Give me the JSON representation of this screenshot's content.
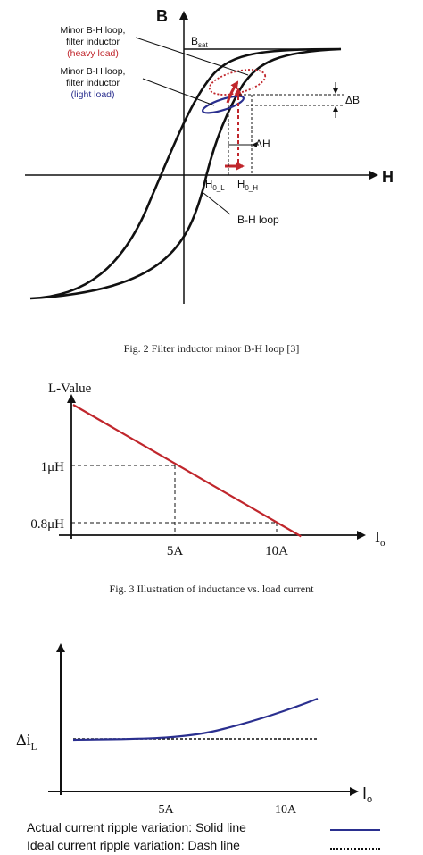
{
  "figure1": {
    "axis_b": "B",
    "axis_h": "H",
    "b_sat": "B",
    "b_sat_sub": "sat",
    "heavy_label_line1": "Minor B-H loop,",
    "heavy_label_line2": "filter inductor",
    "heavy_label_line3": "(heavy load)",
    "light_label_line1": "Minor B-H loop,",
    "light_label_line2": "filter inductor",
    "light_label_line3": "(light load)",
    "delta_b": "ΔB",
    "delta_h": "ΔH",
    "h0l": "H",
    "h0l_sub": "0_L",
    "h0h": "H",
    "h0h_sub": "0_H",
    "bh_loop": "B-H loop",
    "caption": "Fig. 2 Filter inductor minor B-H loop [3]",
    "colors": {
      "heavy": "#c0262c",
      "light": "#2a2f8f",
      "loop": "#111111"
    }
  },
  "figure2": {
    "caption": "Fig. 3 Illustration of inductance vs. load current",
    "chart_data": {
      "type": "line",
      "ylabel": "L-Value",
      "xlabel": "I",
      "xlabel_sub": "o",
      "x_ticks": [
        "5A",
        "10A"
      ],
      "y_ticks": [
        "1μH",
        "0.8μH"
      ],
      "series": [
        {
          "x": [
            0,
            5,
            10
          ],
          "y": [
            1.1,
            1.0,
            0.8
          ]
        }
      ],
      "color": "#c0262c"
    }
  },
  "figure3": {
    "chart_data": {
      "type": "line",
      "ylabel": "Δi",
      "ylabel_sub": "L",
      "xlabel": "I",
      "xlabel_sub": "o",
      "x_ticks": [
        "5A",
        "10A"
      ],
      "series": [
        {
          "name": "Actual current ripple variation: Solid line",
          "style": "solid",
          "color": "#2a2f8f"
        },
        {
          "name": "Ideal current ripple variation: Dash line",
          "style": "dash",
          "color": "#111111"
        }
      ]
    },
    "legend_actual": "Actual current ripple variation: Solid line",
    "legend_ideal": "Ideal current ripple variation: Dash line"
  }
}
